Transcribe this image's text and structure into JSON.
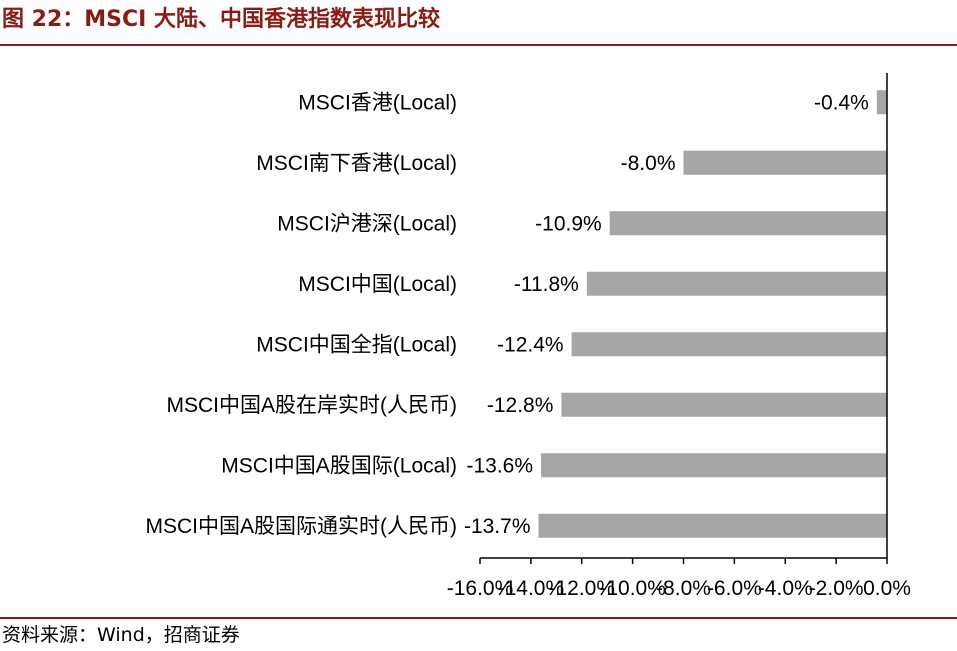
{
  "figure": {
    "title": "图 22：MSCI 大陆、中国香港指数表现比较",
    "source": "资料来源：Wind，招商证券"
  },
  "colors": {
    "title": "#8a1b14",
    "rule": "#8a1b14",
    "bar": "#a6a6a6",
    "axis": "#000000"
  },
  "chart_data": {
    "type": "bar",
    "orientation": "horizontal",
    "categories": [
      "MSCI香港(Local)",
      "MSCI南下香港(Local)",
      "MSCI沪港深(Local)",
      "MSCI中国(Local)",
      "MSCI中国全指(Local)",
      "MSCI中国A股在岸实时(人民币)",
      "MSCI中国A股国际(Local)",
      "MSCI中国A股国际通实时(人民币)"
    ],
    "values": [
      -0.4,
      -8.0,
      -10.9,
      -11.8,
      -12.4,
      -12.8,
      -13.6,
      -13.7
    ],
    "data_labels": [
      "-0.4%",
      "-8.0%",
      "-10.9%",
      "-11.8%",
      "-12.4%",
      "-12.8%",
      "-13.6%",
      "-13.7%"
    ],
    "xlim": [
      -16.0,
      0.0
    ],
    "xticks": [
      -16.0,
      -14.0,
      -12.0,
      -10.0,
      -8.0,
      -6.0,
      -4.0,
      -2.0,
      0.0
    ],
    "xtick_labels": [
      "-16.0%",
      "-14.0%",
      "-12.0%",
      "-10.0%",
      "-8.0%",
      "-6.0%",
      "-4.0%",
      "-2.0%",
      "0.0%"
    ],
    "grid": false,
    "legend": "none"
  }
}
